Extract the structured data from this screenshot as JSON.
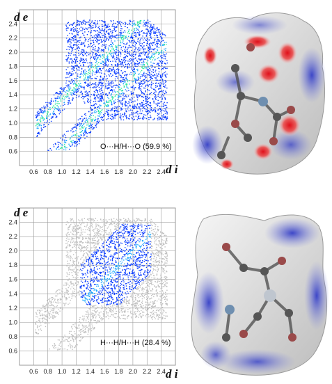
{
  "chart_data": [
    {
      "type": "scatter",
      "title": "",
      "xlabel": "d i",
      "ylabel": "d e",
      "label": "O···H/H···O  (59.9 %)",
      "xlim": [
        0.4,
        2.6
      ],
      "ylim": [
        0.4,
        2.6
      ],
      "xticks": [
        "0.6",
        "0.8",
        "1.0",
        "1.2",
        "1.4",
        "1.6",
        "1.8",
        "2.0",
        "2.2",
        "2.4"
      ],
      "yticks": [
        "0.6",
        "0.8",
        "1.0",
        "1.2",
        "1.4",
        "1.6",
        "1.8",
        "2.0",
        "2.2",
        "2.4"
      ],
      "grid": true,
      "highlight": "all",
      "series": [
        {
          "points": [
            [
              0.66,
              1.01
            ],
            [
              0.75,
              1.08
            ],
            [
              0.85,
              1.17
            ],
            [
              0.95,
              1.27
            ],
            [
              1.05,
              1.37
            ],
            [
              1.15,
              1.48
            ],
            [
              1.25,
              1.58
            ],
            [
              1.35,
              1.68
            ],
            [
              1.45,
              1.78
            ],
            [
              1.55,
              1.88
            ],
            [
              1.65,
              1.98
            ],
            [
              1.75,
              2.08
            ],
            [
              1.85,
              2.18
            ],
            [
              1.95,
              2.28
            ],
            [
              2.05,
              2.35
            ]
          ]
        },
        {
          "points": [
            [
              1.01,
              0.66
            ],
            [
              1.08,
              0.76
            ],
            [
              1.17,
              0.86
            ],
            [
              1.27,
              0.96
            ],
            [
              1.37,
              1.06
            ],
            [
              1.47,
              1.16
            ],
            [
              1.57,
              1.28
            ],
            [
              1.68,
              1.4
            ],
            [
              1.78,
              1.52
            ],
            [
              1.88,
              1.64
            ],
            [
              1.98,
              1.75
            ],
            [
              2.08,
              1.86
            ],
            [
              2.2,
              1.95
            ],
            [
              2.3,
              2.05
            ],
            [
              2.38,
              2.15
            ]
          ]
        }
      ]
    },
    {
      "type": "scatter",
      "title": "",
      "xlabel": "d i",
      "ylabel": "d e",
      "label": "H···H/H···H  (28.4 %)",
      "xlim": [
        0.4,
        2.6
      ],
      "ylim": [
        0.4,
        2.6
      ],
      "xticks": [
        "0.6",
        "0.8",
        "1.0",
        "1.2",
        "1.4",
        "1.6",
        "1.8",
        "2.0",
        "2.2",
        "2.4"
      ],
      "yticks": [
        "0.6",
        "0.8",
        "1.0",
        "1.2",
        "1.4",
        "1.6",
        "1.8",
        "2.0",
        "2.2",
        "2.4"
      ],
      "grid": true,
      "highlight": "central",
      "series": [
        {
          "points": [
            [
              1.15,
              1.15
            ],
            [
              1.25,
              1.25
            ],
            [
              1.35,
              1.35
            ],
            [
              1.45,
              1.45
            ],
            [
              1.55,
              1.55
            ],
            [
              1.65,
              1.65
            ],
            [
              1.75,
              1.75
            ],
            [
              1.85,
              1.85
            ],
            [
              1.95,
              1.95
            ],
            [
              2.05,
              2.05
            ],
            [
              2.15,
              2.15
            ],
            [
              2.25,
              2.25
            ]
          ]
        }
      ]
    }
  ],
  "colors": {
    "grid": "#9a9a9a",
    "background_points": "#c0c0c0",
    "low_density": "#0a3cff",
    "mid_density": "#1ea7ff",
    "high_density": "#2ee89a",
    "surface_red": "#e0202a",
    "surface_blue": "#3c46c8",
    "surface_white": "#f2f2f2"
  }
}
